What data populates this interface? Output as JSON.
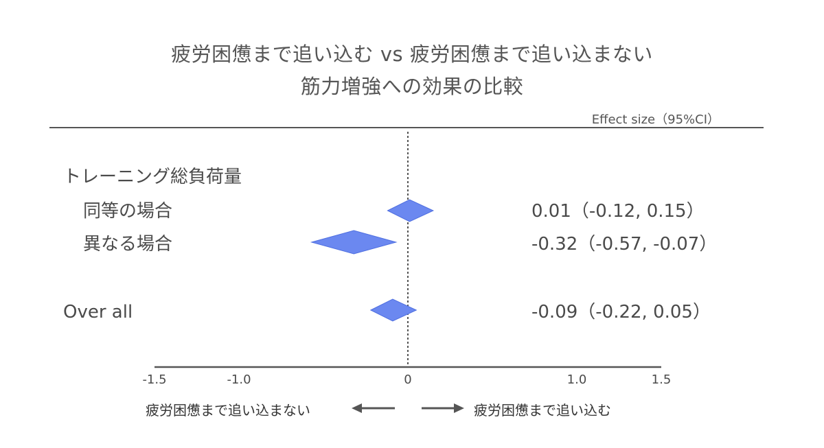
{
  "title": [
    "疲労困憊まで追い込む vs 疲労困憊まで追い込まない",
    "筋力増強への効果の比較"
  ],
  "effect_header": "Effect size（95%CI）",
  "arrows": {
    "left_label": "疲労困憊まで追い込まない",
    "right_label": "疲労困憊まで追い込む"
  },
  "colors": {
    "diamond_fill": "#6b88f0",
    "diamond_stroke": "#4f6fe0",
    "axis": "#555555",
    "text": "#4a4a4a"
  },
  "chart_data": {
    "type": "forest",
    "xlim": [
      -1.5,
      1.5
    ],
    "ticks": [
      {
        "value": -1.5,
        "label": "-1.5"
      },
      {
        "value": -1.0,
        "label": "-1.0"
      },
      {
        "value": 0,
        "label": "0"
      },
      {
        "value": 1.0,
        "label": "1.0"
      },
      {
        "value": 1.5,
        "label": "1.5"
      }
    ],
    "reference_line": 0,
    "group_label": "トレーニング総負荷量",
    "rows": [
      {
        "label": "同等の場合",
        "estimate": 0.01,
        "lower": -0.12,
        "upper": 0.15,
        "text": "0.01（-0.12, 0.15）"
      },
      {
        "label": "異なる場合",
        "estimate": -0.32,
        "lower": -0.57,
        "upper": -0.07,
        "text": "-0.32（-0.57, -0.07）"
      },
      {
        "label": "Over all",
        "estimate": -0.09,
        "lower": -0.22,
        "upper": 0.05,
        "text": "-0.09（-0.22, 0.05）"
      }
    ]
  }
}
